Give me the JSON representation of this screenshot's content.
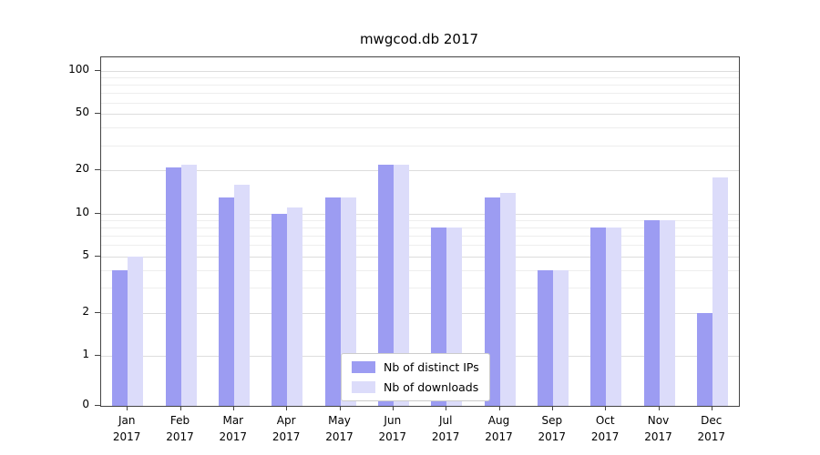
{
  "title": "mwgcod.db 2017",
  "axis": {
    "y_ticks": [
      0,
      1,
      2,
      5,
      10,
      20,
      50,
      100
    ],
    "y_minor_ticks": [
      3,
      4,
      6,
      7,
      8,
      9,
      30,
      40,
      60,
      70,
      80,
      90
    ],
    "x_months": [
      "Jan",
      "Feb",
      "Mar",
      "Apr",
      "May",
      "Jun",
      "Jul",
      "Aug",
      "Sep",
      "Oct",
      "Nov",
      "Dec"
    ],
    "x_year": "2017"
  },
  "legend": {
    "items": [
      {
        "label": "Nb of distinct IPs",
        "color": "#9c9cf2"
      },
      {
        "label": "Nb of downloads",
        "color": "#dcdcfa"
      }
    ]
  },
  "chart_data": {
    "type": "bar",
    "title": "mwgcod.db 2017",
    "categories": [
      "Jan 2017",
      "Feb 2017",
      "Mar 2017",
      "Apr 2017",
      "May 2017",
      "Jun 2017",
      "Jul 2017",
      "Aug 2017",
      "Sep 2017",
      "Oct 2017",
      "Nov 2017",
      "Dec 2017"
    ],
    "series": [
      {
        "name": "Nb of distinct IPs",
        "color": "#9c9cf2",
        "values": [
          4,
          21,
          13,
          10,
          13,
          22,
          8,
          13,
          4,
          8,
          9,
          2
        ]
      },
      {
        "name": "Nb of downloads",
        "color": "#dcdcfa",
        "values": [
          5,
          22,
          16,
          11,
          13,
          22,
          8,
          14,
          4,
          8,
          9,
          18
        ]
      }
    ],
    "yscale": "symlog",
    "y_ticks": [
      0,
      1,
      2,
      5,
      10,
      20,
      50,
      100
    ],
    "ylim": [
      0,
      110
    ],
    "grid": true,
    "legend_position": "lower center"
  }
}
